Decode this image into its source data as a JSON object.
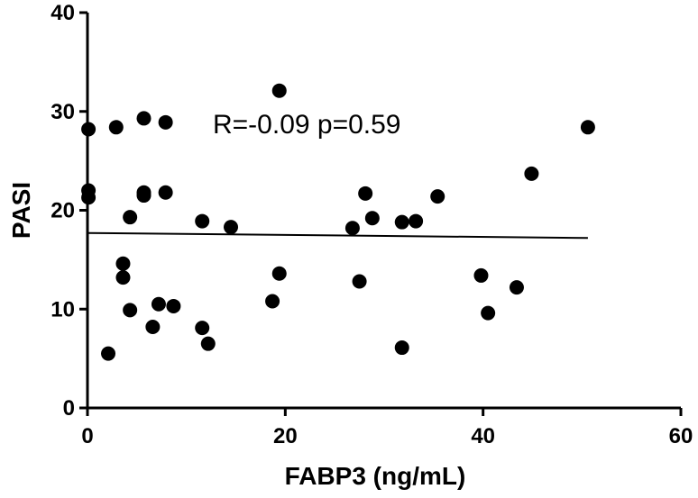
{
  "chart_data": {
    "type": "scatter",
    "xlabel": "FABP3 (ng/mL)",
    "ylabel": "PASI",
    "xlim": [
      0,
      60
    ],
    "ylim": [
      0,
      40
    ],
    "x_ticks": [
      "0",
      "20",
      "40",
      "60"
    ],
    "y_ticks": [
      "0",
      "10",
      "20",
      "30",
      "40"
    ],
    "annotation": "R=-0.09 p=0.59",
    "grid": false,
    "points": [
      {
        "x": 0.1,
        "y": 28.2
      },
      {
        "x": 0.1,
        "y": 22.0
      },
      {
        "x": 0.1,
        "y": 21.3
      },
      {
        "x": 2.1,
        "y": 5.5
      },
      {
        "x": 2.9,
        "y": 28.4
      },
      {
        "x": 3.6,
        "y": 14.6
      },
      {
        "x": 3.6,
        "y": 13.2
      },
      {
        "x": 4.3,
        "y": 19.3
      },
      {
        "x": 4.3,
        "y": 9.9
      },
      {
        "x": 5.7,
        "y": 29.3
      },
      {
        "x": 5.7,
        "y": 21.8
      },
      {
        "x": 5.7,
        "y": 21.5
      },
      {
        "x": 6.6,
        "y": 8.2
      },
      {
        "x": 7.2,
        "y": 10.5
      },
      {
        "x": 7.9,
        "y": 28.9
      },
      {
        "x": 7.9,
        "y": 21.8
      },
      {
        "x": 8.7,
        "y": 10.3
      },
      {
        "x": 11.6,
        "y": 18.9
      },
      {
        "x": 11.6,
        "y": 8.1
      },
      {
        "x": 12.2,
        "y": 6.5
      },
      {
        "x": 14.5,
        "y": 18.3
      },
      {
        "x": 18.7,
        "y": 10.8
      },
      {
        "x": 19.4,
        "y": 32.1
      },
      {
        "x": 19.4,
        "y": 13.6
      },
      {
        "x": 26.8,
        "y": 18.2
      },
      {
        "x": 27.5,
        "y": 12.8
      },
      {
        "x": 28.1,
        "y": 21.7
      },
      {
        "x": 28.8,
        "y": 19.2
      },
      {
        "x": 31.8,
        "y": 18.8
      },
      {
        "x": 31.8,
        "y": 6.1
      },
      {
        "x": 33.2,
        "y": 18.9
      },
      {
        "x": 35.4,
        "y": 21.4
      },
      {
        "x": 39.8,
        "y": 13.4
      },
      {
        "x": 40.5,
        "y": 9.6
      },
      {
        "x": 43.4,
        "y": 12.2
      },
      {
        "x": 44.9,
        "y": 23.7
      },
      {
        "x": 50.6,
        "y": 28.4
      }
    ],
    "regression": {
      "x": [
        0,
        50.6
      ],
      "y": [
        17.7,
        17.2
      ]
    }
  }
}
